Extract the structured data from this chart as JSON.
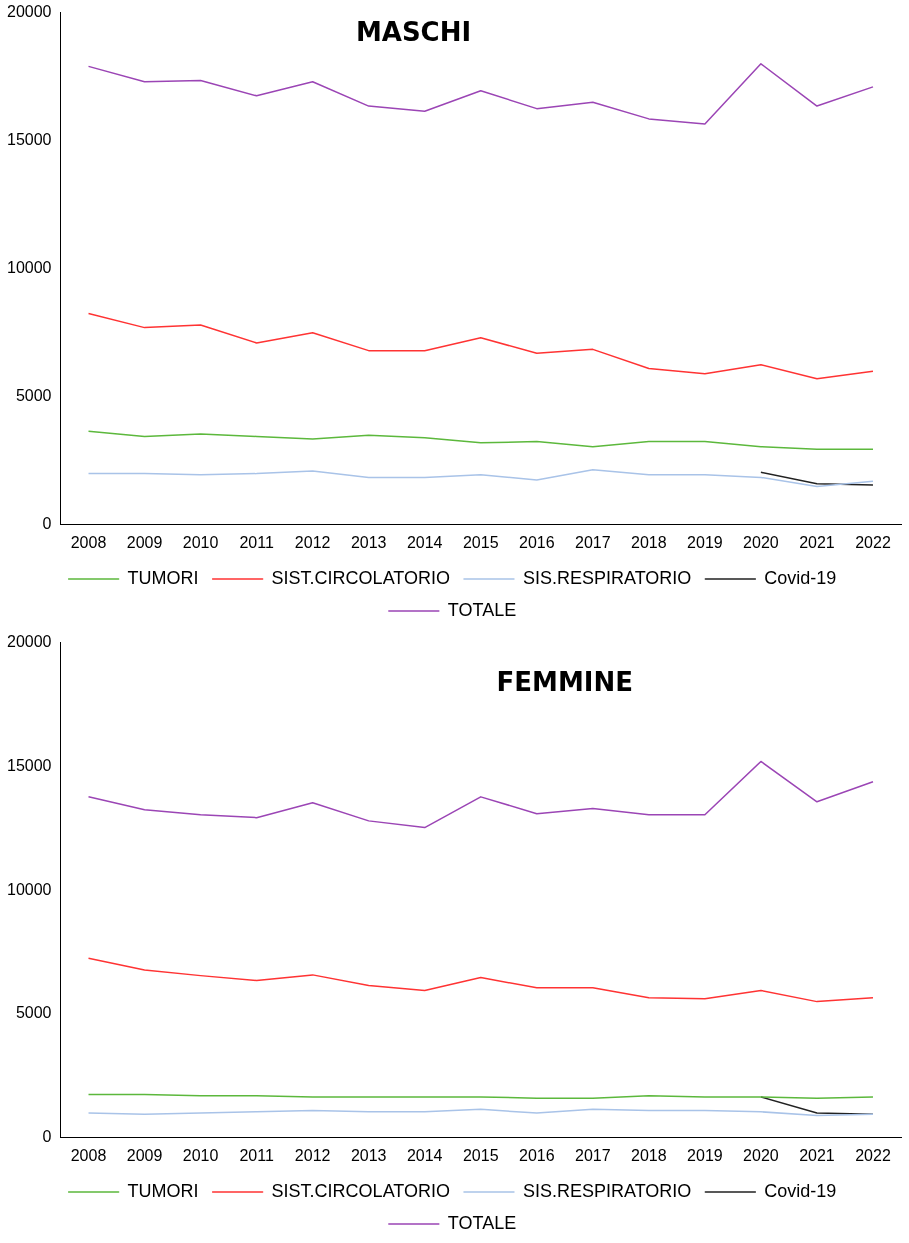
{
  "chart_data": [
    {
      "type": "line",
      "title": "MASCHI",
      "categories": [
        "2008",
        "2009",
        "2010",
        "2011",
        "2012",
        "2013",
        "2014",
        "2015",
        "2016",
        "2017",
        "2018",
        "2019",
        "2020",
        "2021",
        "2022"
      ],
      "ylim": [
        0,
        20000
      ],
      "yticks": [
        0,
        5000,
        10000,
        15000,
        20000
      ],
      "grid": false,
      "legend": "bottom",
      "marker": "none",
      "series": [
        {
          "name": "TUMORI",
          "color": "#5cb83c",
          "values": [
            3650,
            3450,
            3550,
            3450,
            3350,
            3500,
            3400,
            3200,
            3250,
            3050,
            3250,
            3250,
            3050,
            2950,
            2950
          ]
        },
        {
          "name": "SIST.CIRCOLATORIO",
          "color": "#ff3333",
          "values": [
            8250,
            7700,
            7800,
            7100,
            7500,
            6800,
            6800,
            7300,
            6700,
            6850,
            6100,
            5900,
            6250,
            5700,
            6000
          ]
        },
        {
          "name": "SIS.RESPIRATORIO",
          "color": "#a9c3e8",
          "values": [
            2000,
            2000,
            1950,
            2000,
            2100,
            1850,
            1850,
            1950,
            1750,
            2150,
            1950,
            1950,
            1850,
            1500,
            1700
          ]
        },
        {
          "name": "Covid-19",
          "color": "#222222",
          "values": [
            null,
            null,
            null,
            null,
            null,
            null,
            null,
            null,
            null,
            null,
            null,
            null,
            2050,
            1600,
            1550
          ]
        },
        {
          "name": "TOTALE",
          "color": "#9b45b5",
          "values": [
            17900,
            17300,
            17350,
            16750,
            17300,
            16350,
            16150,
            16950,
            16250,
            16500,
            15850,
            15650,
            18000,
            16350,
            17100
          ]
        }
      ]
    },
    {
      "type": "line",
      "title": "FEMMINE",
      "categories": [
        "2008",
        "2009",
        "2010",
        "2011",
        "2012",
        "2013",
        "2014",
        "2015",
        "2016",
        "2017",
        "2018",
        "2019",
        "2020",
        "2021",
        "2022"
      ],
      "ylim": [
        0,
        20000
      ],
      "yticks": [
        0,
        5000,
        10000,
        15000,
        20000
      ],
      "grid": false,
      "legend": "bottom",
      "marker": "none",
      "series": [
        {
          "name": "TUMORI",
          "color": "#5cb83c",
          "values": [
            1750,
            1750,
            1700,
            1700,
            1650,
            1650,
            1650,
            1650,
            1600,
            1600,
            1700,
            1650,
            1650,
            1600,
            1650
          ]
        },
        {
          "name": "SIST.CIRCOLATORIO",
          "color": "#ff3333",
          "values": [
            7250,
            6780,
            6550,
            6350,
            6580,
            6150,
            5950,
            6470,
            6060,
            6060,
            5660,
            5620,
            5950,
            5500,
            5660
          ]
        },
        {
          "name": "SIS.RESPIRATORIO",
          "color": "#a9c3e8",
          "values": [
            1000,
            950,
            1000,
            1050,
            1100,
            1050,
            1050,
            1150,
            1000,
            1150,
            1100,
            1100,
            1050,
            900,
            950
          ]
        },
        {
          "name": "Covid-19",
          "color": "#222222",
          "values": [
            null,
            null,
            null,
            null,
            null,
            null,
            null,
            null,
            null,
            null,
            null,
            null,
            1650,
            1000,
            950
          ]
        },
        {
          "name": "TOTALE",
          "color": "#9b45b5",
          "values": [
            13770,
            13250,
            13050,
            12930,
            13530,
            12800,
            12530,
            13770,
            13090,
            13300,
            13050,
            13050,
            15200,
            13570,
            14380
          ]
        }
      ]
    }
  ]
}
